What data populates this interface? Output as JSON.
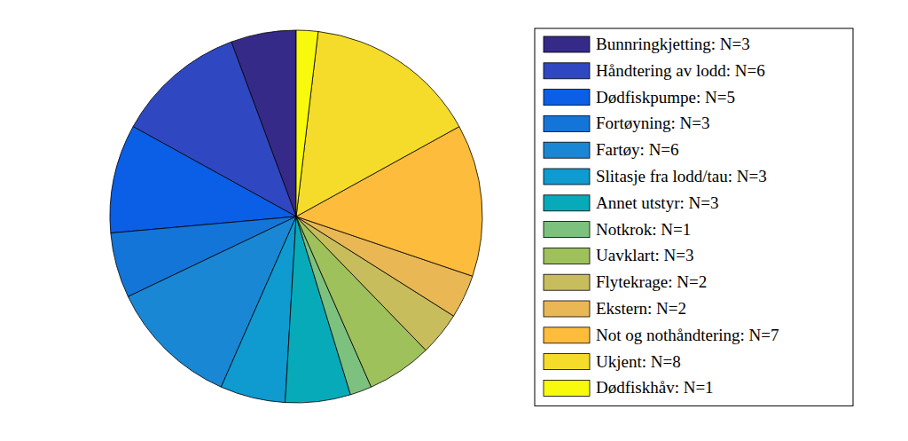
{
  "chart_data": {
    "type": "pie",
    "categories": [
      "Bunnringkjetting: N=3",
      "Håndtering av lodd: N=6",
      "Dødfiskpumpe: N=5",
      "Fortøyning: N=3",
      "Fartøy: N=6",
      "Slitasje fra lodd/tau: N=3",
      "Annet utstyr: N=3",
      "Notkrok: N=1",
      "Uavklart: N=3",
      "Flytekrage: N=2",
      "Ekstern: N=2",
      "Not og nothåndtering: N=7",
      "Ukjent: N=8",
      "Dødfiskhåv: N=1"
    ],
    "values": [
      3,
      6,
      5,
      3,
      6,
      3,
      3,
      1,
      3,
      2,
      2,
      7,
      8,
      1
    ],
    "colors": [
      "#352a87",
      "#3047c2",
      "#0b5ee6",
      "#1375d8",
      "#1a87d4",
      "#0f9ad0",
      "#07aab8",
      "#7dc17f",
      "#9fc15c",
      "#c8bd5c",
      "#e9b855",
      "#fdbc3c",
      "#f5dc2a",
      "#f8fa0d"
    ],
    "legend": "right"
  }
}
